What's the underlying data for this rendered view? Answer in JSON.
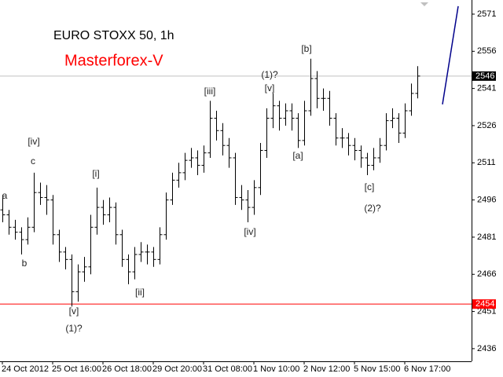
{
  "chart_data": {
    "type": "ohlc",
    "title": "EURO STOXX 50, 1h",
    "subtitle": "Masterforex-V",
    "title_color": "#000000",
    "subtitle_color": "#ff0000",
    "bar_color": "#000000",
    "categories": [
      "24 Oct 2012",
      null,
      null,
      null,
      null,
      null,
      null,
      null,
      "25 Oct 16:00",
      null,
      null,
      null,
      null,
      null,
      null,
      null,
      "26 Oct 18:00",
      null,
      null,
      null,
      null,
      null,
      null,
      null,
      "29 Oct 20:00",
      null,
      null,
      null,
      null,
      null,
      null,
      null,
      "31 Oct 08:00",
      null,
      null,
      null,
      null,
      null,
      null,
      null,
      "1 Nov 10:00",
      null,
      null,
      null,
      null,
      null,
      null,
      null,
      "2 Nov 12:00",
      null,
      null,
      null,
      null,
      null,
      null,
      null,
      "5 Nov 15:00",
      null,
      null,
      null,
      null,
      null,
      null,
      null,
      "6 Nov 17:00",
      null,
      null
    ],
    "open": [
      2492,
      2490,
      2485,
      2483,
      2480,
      2485,
      2499,
      2497,
      2496,
      2482,
      2475,
      2472,
      2459,
      2467,
      2469,
      2485,
      2493,
      2490,
      2493,
      2482,
      2472,
      2467,
      2474,
      2475,
      2475,
      2472,
      2482,
      2496,
      2504,
      2507,
      2512,
      2513,
      2510,
      2515,
      2529,
      2524,
      2518,
      2513,
      2497,
      2496,
      2493,
      2501,
      2516,
      2529,
      2534,
      2529,
      2532,
      2529,
      2520,
      2532,
      2545,
      2537,
      2537,
      2529,
      2521,
      2521,
      2518,
      2516,
      2513,
      2510,
      2513,
      2518,
      2528,
      2529,
      2523,
      2532,
      2539
    ],
    "high": [
      2498,
      2492,
      2488,
      2485,
      2489,
      2507,
      2503,
      2502,
      2498,
      2484,
      2477,
      2474,
      2470,
      2473,
      2490,
      2501,
      2496,
      2497,
      2495,
      2484,
      2474,
      2477,
      2479,
      2478,
      2477,
      2485,
      2499,
      2507,
      2511,
      2515,
      2517,
      2516,
      2518,
      2536,
      2532,
      2527,
      2521,
      2515,
      2502,
      2500,
      2504,
      2519,
      2533,
      2539,
      2536,
      2535,
      2535,
      2531,
      2536,
      2553,
      2548,
      2541,
      2540,
      2531,
      2525,
      2523,
      2521,
      2518,
      2515,
      2517,
      2521,
      2531,
      2533,
      2531,
      2535,
      2543,
      2550
    ],
    "low": [
      2487,
      2482,
      2480,
      2474,
      2478,
      2483,
      2494,
      2490,
      2478,
      2471,
      2468,
      2453,
      2455,
      2463,
      2466,
      2482,
      2486,
      2487,
      2478,
      2469,
      2462,
      2464,
      2471,
      2470,
      2469,
      2470,
      2480,
      2494,
      2501,
      2504,
      2509,
      2506,
      2507,
      2513,
      2520,
      2514,
      2509,
      2494,
      2492,
      2487,
      2490,
      2498,
      2513,
      2525,
      2524,
      2526,
      2524,
      2517,
      2518,
      2530,
      2533,
      2532,
      2526,
      2518,
      2517,
      2514,
      2512,
      2509,
      2506,
      2508,
      2511,
      2516,
      2525,
      2519,
      2521,
      2530,
      2537
    ],
    "close": [
      2490,
      2485,
      2483,
      2480,
      2485,
      2499,
      2497,
      2496,
      2482,
      2475,
      2472,
      2459,
      2467,
      2469,
      2485,
      2493,
      2490,
      2493,
      2482,
      2472,
      2467,
      2474,
      2475,
      2475,
      2472,
      2482,
      2496,
      2504,
      2507,
      2512,
      2513,
      2510,
      2515,
      2529,
      2524,
      2518,
      2513,
      2497,
      2496,
      2493,
      2501,
      2516,
      2529,
      2534,
      2529,
      2532,
      2529,
      2520,
      2532,
      2545,
      2537,
      2537,
      2529,
      2521,
      2521,
      2518,
      2516,
      2513,
      2510,
      2513,
      2518,
      2528,
      2529,
      2523,
      2532,
      2539,
      2546
    ],
    "ylim": [
      2430.9,
      2576.7
    ],
    "yticks": [
      2571,
      2556,
      2541,
      2526,
      2511,
      2496,
      2481,
      2466,
      2451,
      2436
    ],
    "hlines": [
      {
        "value": 2546,
        "color": "#c0c0c0"
      },
      {
        "value": 2454,
        "color": "#ff0000"
      }
    ],
    "projection": {
      "color": "#00008b",
      "values": [
        2534.6,
        2574.2
      ]
    },
    "annotations": [
      {
        "text": "a"
      },
      {
        "text": "b"
      },
      {
        "text": "c"
      },
      {
        "text": "[iv]"
      },
      {
        "text": "[v]"
      },
      {
        "text": "(1)?"
      },
      {
        "text": "[i]"
      },
      {
        "text": "[ii]"
      },
      {
        "text": "[iii]"
      },
      {
        "text": "[iv]"
      },
      {
        "text": "(1)?"
      },
      {
        "text": "[v]"
      },
      {
        "text": "[a]"
      },
      {
        "text": "[b]"
      },
      {
        "text": "[c]"
      },
      {
        "text": "(2)?"
      }
    ]
  }
}
